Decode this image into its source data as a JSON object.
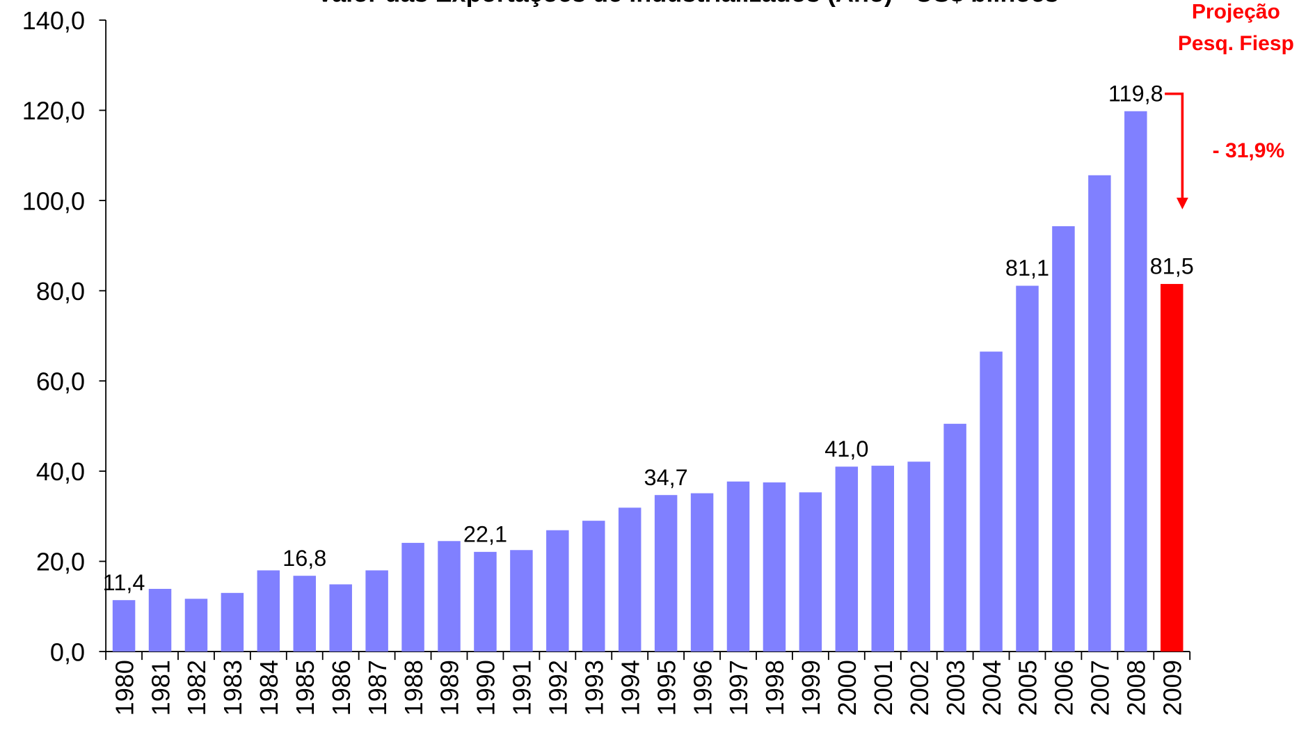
{
  "chart_data": {
    "type": "bar",
    "title": "Valor das Exportações de Industrializados (Ano) - US$ bilhões",
    "categories": [
      "1980",
      "1981",
      "1982",
      "1983",
      "1984",
      "1985",
      "1986",
      "1987",
      "1988",
      "1989",
      "1990",
      "1991",
      "1992",
      "1993",
      "1994",
      "1995",
      "1996",
      "1997",
      "1998",
      "1999",
      "2000",
      "2001",
      "2002",
      "2003",
      "2004",
      "2005",
      "2006",
      "2007",
      "2008",
      "2009"
    ],
    "values": [
      11.4,
      13.9,
      11.7,
      13.0,
      18.0,
      16.8,
      14.9,
      18.0,
      24.1,
      24.5,
      22.1,
      22.5,
      26.9,
      29.0,
      31.9,
      34.7,
      35.1,
      37.7,
      37.5,
      35.3,
      41.0,
      41.2,
      42.1,
      50.5,
      66.5,
      81.1,
      94.3,
      105.6,
      119.8,
      81.5
    ],
    "value_labels": [
      "11,4",
      null,
      null,
      null,
      null,
      "16,8",
      null,
      null,
      null,
      null,
      "22,1",
      null,
      null,
      null,
      null,
      "34,7",
      null,
      null,
      null,
      null,
      "41,0",
      null,
      null,
      null,
      null,
      "81,1",
      null,
      null,
      "119,8",
      "81,5"
    ],
    "colors": [
      "#8080ff",
      "#8080ff",
      "#8080ff",
      "#8080ff",
      "#8080ff",
      "#8080ff",
      "#8080ff",
      "#8080ff",
      "#8080ff",
      "#8080ff",
      "#8080ff",
      "#8080ff",
      "#8080ff",
      "#8080ff",
      "#8080ff",
      "#8080ff",
      "#8080ff",
      "#8080ff",
      "#8080ff",
      "#8080ff",
      "#8080ff",
      "#8080ff",
      "#8080ff",
      "#8080ff",
      "#8080ff",
      "#8080ff",
      "#8080ff",
      "#8080ff",
      "#8080ff",
      "#ff0000"
    ],
    "ylim": [
      0,
      140
    ],
    "yticks": [
      {
        "value": 0,
        "label": "0,0"
      },
      {
        "value": 20,
        "label": "20,0"
      },
      {
        "value": 40,
        "label": "40,0"
      },
      {
        "value": 60,
        "label": "60,0"
      },
      {
        "value": 80,
        "label": "80,0"
      },
      {
        "value": 100,
        "label": "100,0"
      },
      {
        "value": 120,
        "label": "120,0"
      },
      {
        "value": 140,
        "label": "140,0"
      }
    ],
    "annotations": [
      "Projeção",
      "Pesq. Fiesp",
      "- 31,9%"
    ]
  }
}
